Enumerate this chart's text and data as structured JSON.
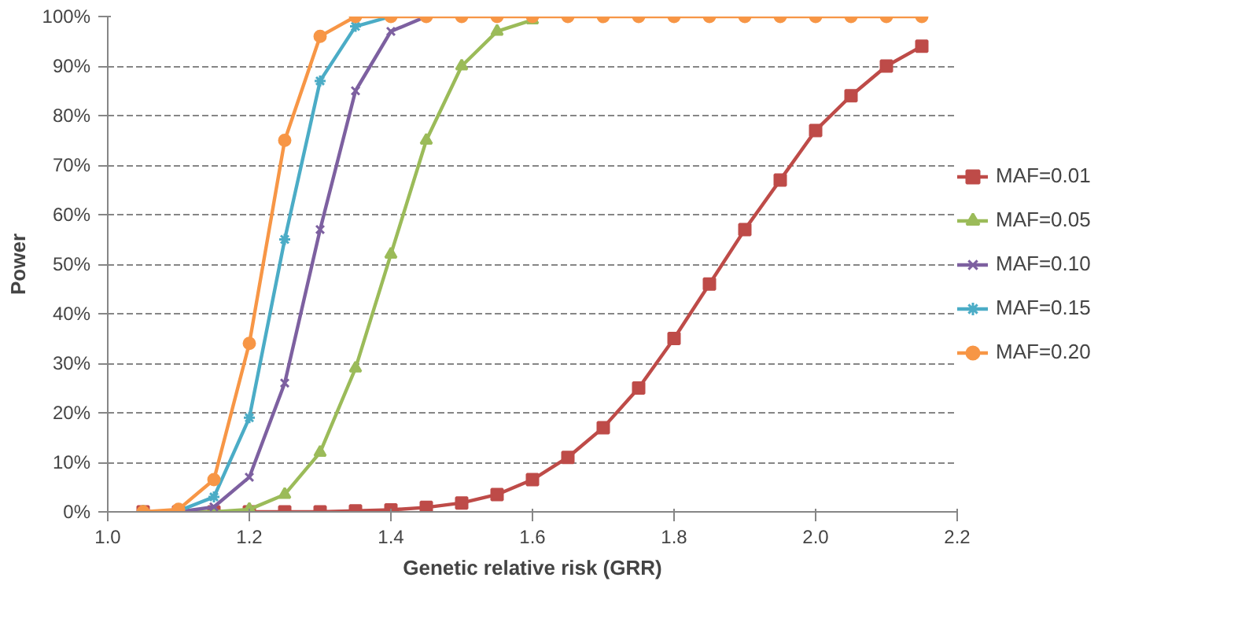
{
  "chart_data": {
    "type": "line",
    "xlabel": "Genetic relative risk (GRR)",
    "ylabel": "Power",
    "x": [
      1.05,
      1.1,
      1.15,
      1.2,
      1.25,
      1.3,
      1.35,
      1.4,
      1.45,
      1.5,
      1.55,
      1.6,
      1.65,
      1.7,
      1.75,
      1.8,
      1.85,
      1.9,
      1.95,
      2.0,
      2.05,
      2.1,
      2.15
    ],
    "series": [
      {
        "name": "MAF=0.01",
        "color": "#be4b48",
        "marker": "square",
        "values": [
          0,
          0,
          0,
          0,
          0,
          0,
          0.2,
          0.4,
          0.9,
          1.8,
          3.5,
          6.5,
          11,
          17,
          25,
          35,
          46,
          57,
          67,
          77,
          84,
          90,
          94
        ]
      },
      {
        "name": "MAF=0.05",
        "color": "#9bbb59",
        "marker": "triangle",
        "values": [
          0,
          0,
          0,
          0.5,
          3.5,
          12,
          29,
          52,
          75,
          90,
          97,
          99.3,
          null,
          null,
          null,
          null,
          null,
          null,
          null,
          null,
          null,
          null,
          null
        ]
      },
      {
        "name": "MAF=0.10",
        "color": "#7d60a0",
        "marker": "x",
        "values": [
          0,
          0,
          1,
          7,
          26,
          57,
          85,
          97,
          100,
          null,
          null,
          null,
          null,
          null,
          null,
          null,
          null,
          null,
          null,
          null,
          null,
          null,
          null
        ]
      },
      {
        "name": "MAF=0.15",
        "color": "#4bacc6",
        "marker": "cross",
        "values": [
          null,
          0.2,
          3,
          19,
          55,
          87,
          98,
          100,
          null,
          null,
          null,
          null,
          null,
          null,
          null,
          null,
          null,
          null,
          null,
          null,
          null,
          null,
          null
        ]
      },
      {
        "name": "MAF=0.20",
        "color": "#f79646",
        "marker": "circle",
        "values": [
          0,
          0.5,
          6.5,
          34,
          75,
          96,
          100,
          100,
          100,
          100,
          100,
          100,
          100,
          100,
          100,
          100,
          100,
          100,
          100,
          100,
          100,
          100,
          100
        ]
      }
    ],
    "xlim": [
      1.0,
      2.2
    ],
    "xticks": [
      {
        "value": 1.0,
        "label": "1.0"
      },
      {
        "value": 1.2,
        "label": "1.2"
      },
      {
        "value": 1.4,
        "label": "1.4"
      },
      {
        "value": 1.6,
        "label": "1.6"
      },
      {
        "value": 1.8,
        "label": "1.8"
      },
      {
        "value": 2.0,
        "label": "2.0"
      },
      {
        "value": 2.2,
        "label": "2.2"
      }
    ],
    "ylim": [
      0,
      100
    ],
    "yticks": [
      {
        "value": 0,
        "label": "0%"
      },
      {
        "value": 10,
        "label": "10%"
      },
      {
        "value": 20,
        "label": "20%"
      },
      {
        "value": 30,
        "label": "30%"
      },
      {
        "value": 40,
        "label": "40%"
      },
      {
        "value": 50,
        "label": "50%"
      },
      {
        "value": 60,
        "label": "60%"
      },
      {
        "value": 70,
        "label": "70%"
      },
      {
        "value": 80,
        "label": "80%"
      },
      {
        "value": 90,
        "label": "90%"
      },
      {
        "value": 100,
        "label": "100%"
      }
    ],
    "grid": "y",
    "legend": "right",
    "line_style": "solid"
  }
}
